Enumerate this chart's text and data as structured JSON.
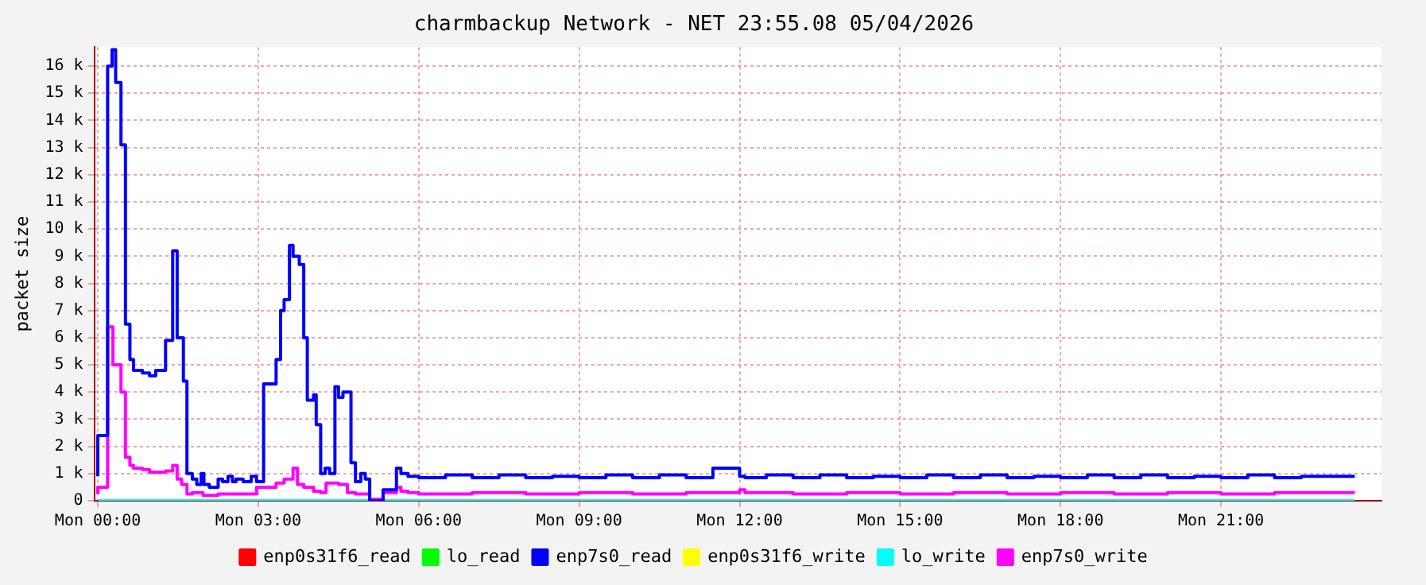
{
  "chart_data": {
    "type": "step",
    "title": "charmbackup Network - NET 23:55.08 05/04/2026",
    "ylabel": "packet size",
    "xlim": [
      "2026-05-03T23:56",
      "2026-05-05T00:00"
    ],
    "ylim": [
      0,
      16700
    ],
    "xticks": [
      {
        "value": "2026-05-04T00:00",
        "label": "Mon 00:00"
      },
      {
        "value": "2026-05-04T03:00",
        "label": "Mon 03:00"
      },
      {
        "value": "2026-05-04T06:00",
        "label": "Mon 06:00"
      },
      {
        "value": "2026-05-04T09:00",
        "label": "Mon 09:00"
      },
      {
        "value": "2026-05-04T12:00",
        "label": "Mon 12:00"
      },
      {
        "value": "2026-05-04T15:00",
        "label": "Mon 15:00"
      },
      {
        "value": "2026-05-04T18:00",
        "label": "Mon 18:00"
      },
      {
        "value": "2026-05-04T21:00",
        "label": "Mon 21:00"
      }
    ],
    "yticks": [
      0,
      {
        "value": 1000,
        "label": "1 k"
      },
      {
        "value": 2000,
        "label": "2 k"
      },
      {
        "value": 3000,
        "label": "3 k"
      },
      {
        "value": 4000,
        "label": "4 k"
      },
      {
        "value": 5000,
        "label": "5 k"
      },
      {
        "value": 6000,
        "label": "6 k"
      },
      {
        "value": 7000,
        "label": "7 k"
      },
      {
        "value": 8000,
        "label": "8 k"
      },
      {
        "value": 9000,
        "label": "9 k"
      },
      {
        "value": 10000,
        "label": "10 k"
      },
      {
        "value": 11000,
        "label": "11 k"
      },
      {
        "value": 12000,
        "label": "12 k"
      },
      {
        "value": 13000,
        "label": "13 k"
      },
      {
        "value": 14000,
        "label": "14 k"
      },
      {
        "value": 15000,
        "label": "15 k"
      },
      {
        "value": 16000,
        "label": "16 k"
      }
    ],
    "grid": true,
    "legend": "bottom",
    "series": [
      {
        "name": "enp0s31f6_read",
        "color": "#ff0000"
      },
      {
        "name": "lo_read",
        "color": "#00ff00"
      },
      {
        "name": "enp7s0_read",
        "color": "#0000ff",
        "x": [
          "2026-05-04T00:00",
          "2026-05-04T00:11",
          "2026-05-04T00:16",
          "2026-05-04T00:20",
          "2026-05-04T00:26",
          "2026-05-04T00:31",
          "2026-05-04T00:36",
          "2026-05-04T00:40",
          "2026-05-04T00:50",
          "2026-05-04T00:58",
          "2026-05-04T01:05",
          "2026-05-04T01:16",
          "2026-05-04T01:24",
          "2026-05-04T01:29",
          "2026-05-04T01:36",
          "2026-05-04T01:40",
          "2026-05-04T01:46",
          "2026-05-04T01:51",
          "2026-05-04T01:56",
          "2026-05-04T01:59",
          "2026-05-04T02:05",
          "2026-05-04T02:15",
          "2026-05-04T02:20",
          "2026-05-04T02:26",
          "2026-05-04T02:31",
          "2026-05-04T02:35",
          "2026-05-04T02:43",
          "2026-05-04T02:52",
          "2026-05-04T02:58",
          "2026-05-04T03:06",
          "2026-05-04T03:20",
          "2026-05-04T03:25",
          "2026-05-04T03:29",
          "2026-05-04T03:35",
          "2026-05-04T03:39",
          "2026-05-04T03:46",
          "2026-05-04T03:51",
          "2026-05-04T03:55",
          "2026-05-04T04:02",
          "2026-05-04T04:05",
          "2026-05-04T04:10",
          "2026-05-04T04:15",
          "2026-05-04T04:20",
          "2026-05-04T04:26",
          "2026-05-04T04:30",
          "2026-05-04T04:35",
          "2026-05-04T04:44",
          "2026-05-04T04:49",
          "2026-05-04T04:55",
          "2026-05-04T05:00",
          "2026-05-04T05:05",
          "2026-05-04T05:20",
          "2026-05-04T05:35",
          "2026-05-04T05:40",
          "2026-05-04T05:48",
          "2026-05-04T06:00",
          "2026-05-04T06:30",
          "2026-05-04T07:00",
          "2026-05-04T07:30",
          "2026-05-04T08:00",
          "2026-05-04T08:30",
          "2026-05-04T09:00",
          "2026-05-04T09:30",
          "2026-05-04T10:00",
          "2026-05-04T10:30",
          "2026-05-04T11:00",
          "2026-05-04T11:30",
          "2026-05-04T12:00",
          "2026-05-04T12:06",
          "2026-05-04T12:30",
          "2026-05-04T13:00",
          "2026-05-04T13:30",
          "2026-05-04T14:00",
          "2026-05-04T14:30",
          "2026-05-04T15:00",
          "2026-05-04T15:30",
          "2026-05-04T16:00",
          "2026-05-04T16:30",
          "2026-05-04T17:00",
          "2026-05-04T17:30",
          "2026-05-04T18:00",
          "2026-05-04T18:30",
          "2026-05-04T19:00",
          "2026-05-04T19:30",
          "2026-05-04T20:00",
          "2026-05-04T20:30",
          "2026-05-04T21:00",
          "2026-05-04T21:30",
          "2026-05-04T22:00",
          "2026-05-04T22:30",
          "2026-05-04T23:00",
          "2026-05-04T23:30"
        ],
        "values": [
          900,
          2400,
          16000,
          16600,
          15400,
          13100,
          6500,
          5200,
          4800,
          4700,
          4600,
          4800,
          5900,
          9200,
          6000,
          4400,
          1000,
          800,
          600,
          1000,
          600,
          500,
          800,
          700,
          900,
          700,
          800,
          700,
          900,
          700,
          4300,
          5200,
          7000,
          7400,
          9400,
          9000,
          8700,
          6000,
          3700,
          3900,
          2800,
          1000,
          1200,
          1000,
          4200,
          3800,
          4000,
          1400,
          700,
          1000,
          800,
          0,
          400,
          1200,
          1000,
          900,
          850,
          950,
          850,
          950,
          850,
          900,
          850,
          950,
          850,
          950,
          850,
          1200,
          900,
          850,
          950,
          850,
          950,
          850,
          900,
          850,
          950,
          850,
          950,
          850,
          900,
          850,
          950,
          850,
          950,
          850,
          900,
          850,
          950,
          850,
          900,
          900
        ]
      },
      {
        "name": "enp0s31f6_write",
        "color": "#ffff00"
      },
      {
        "name": "lo_write",
        "color": "#00ffff",
        "x": [
          "2026-05-04T00:00",
          "2026-05-04T23:30"
        ],
        "values": [
          0,
          0
        ]
      },
      {
        "name": "enp7s0_write",
        "color": "#ff00ff",
        "x": [
          "2026-05-04T00:00",
          "2026-05-04T00:11",
          "2026-05-04T00:17",
          "2026-05-04T00:26",
          "2026-05-04T00:31",
          "2026-05-04T00:36",
          "2026-05-04T00:40",
          "2026-05-04T00:50",
          "2026-05-04T00:58",
          "2026-05-04T01:16",
          "2026-05-04T01:24",
          "2026-05-04T01:29",
          "2026-05-04T01:34",
          "2026-05-04T01:40",
          "2026-05-04T01:46",
          "2026-05-04T01:58",
          "2026-05-04T02:15",
          "2026-05-04T02:28",
          "2026-05-04T02:58",
          "2026-05-04T03:20",
          "2026-05-04T03:29",
          "2026-05-04T03:39",
          "2026-05-04T03:44",
          "2026-05-04T03:51",
          "2026-05-04T04:02",
          "2026-05-04T04:10",
          "2026-05-04T04:16",
          "2026-05-04T04:30",
          "2026-05-04T04:40",
          "2026-05-04T04:49",
          "2026-05-04T05:05",
          "2026-05-04T05:20",
          "2026-05-04T05:35",
          "2026-05-04T05:40",
          "2026-05-04T05:48",
          "2026-05-04T06:00",
          "2026-05-04T07:00",
          "2026-05-04T08:00",
          "2026-05-04T09:00",
          "2026-05-04T10:00",
          "2026-05-04T11:00",
          "2026-05-04T12:00",
          "2026-05-04T12:06",
          "2026-05-04T13:00",
          "2026-05-04T14:00",
          "2026-05-04T15:00",
          "2026-05-04T16:00",
          "2026-05-04T17:00",
          "2026-05-04T18:00",
          "2026-05-04T19:00",
          "2026-05-04T20:00",
          "2026-05-04T21:00",
          "2026-05-04T22:00",
          "2026-05-04T23:00",
          "2026-05-04T23:30"
        ],
        "values": [
          250,
          500,
          6400,
          5000,
          4000,
          1600,
          1300,
          1200,
          1150,
          1050,
          1100,
          1300,
          800,
          600,
          250,
          300,
          200,
          250,
          250,
          500,
          650,
          800,
          1200,
          600,
          500,
          350,
          300,
          650,
          600,
          300,
          250,
          50,
          300,
          500,
          350,
          300,
          250,
          300,
          250,
          300,
          250,
          300,
          400,
          300,
          250,
          300,
          250,
          300,
          250,
          300,
          250,
          300,
          250,
          300,
          300
        ]
      }
    ]
  }
}
